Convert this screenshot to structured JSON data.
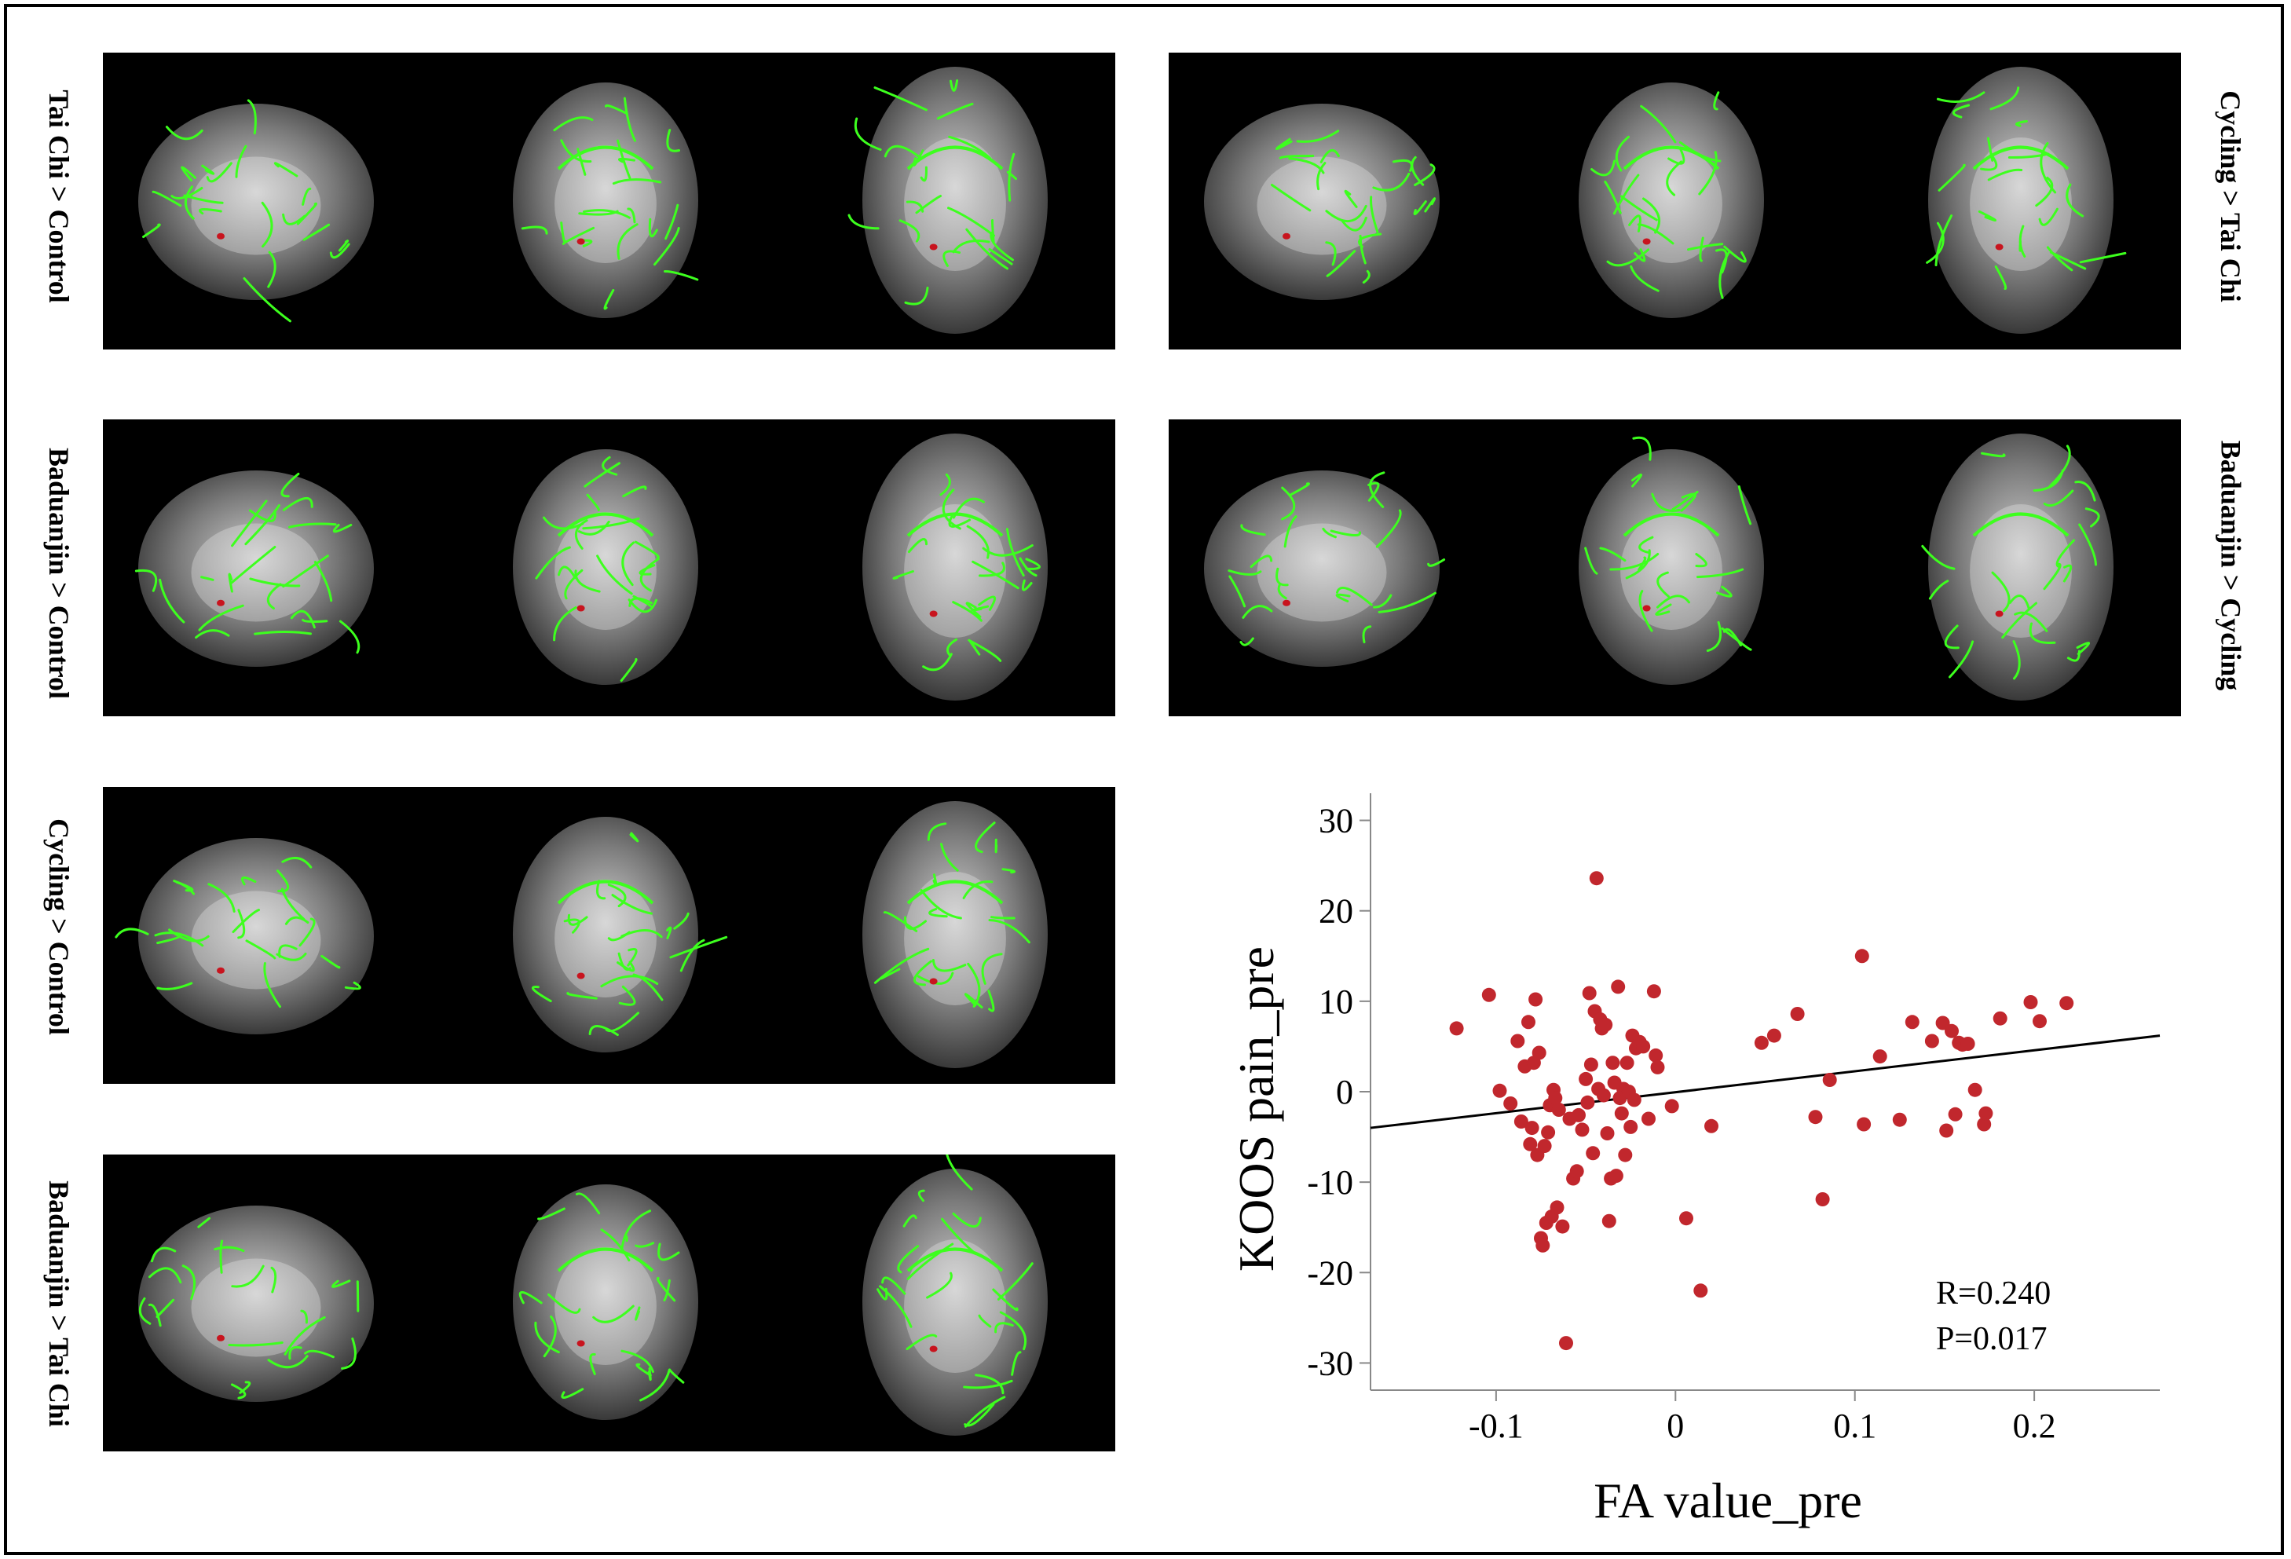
{
  "panels": [
    {
      "label": "Tai Chi > Control",
      "side": "left"
    },
    {
      "label": "Cycling > Tai Chi",
      "side": "right"
    },
    {
      "label": "Baduanjin > Control",
      "side": "left"
    },
    {
      "label": "Baduanjin > Cycling",
      "side": "right"
    },
    {
      "label": "Cycling > Control",
      "side": "left"
    },
    {
      "label": "Baduanjin > Tai Chi",
      "side": "left"
    }
  ],
  "colors": {
    "tract": "#3dff1e",
    "cluster": "#c8141e",
    "point": "#c1272d",
    "background": "#000000"
  },
  "chart_data": {
    "type": "scatter",
    "title": "",
    "xlabel": "FA value_pre",
    "ylabel": "KOOS pain_pre",
    "xlim": [
      -0.17,
      0.27
    ],
    "ylim": [
      -33,
      33
    ],
    "xticks": [
      -0.1,
      0,
      0.1,
      0.2
    ],
    "xtick_labels": [
      "-0.1",
      "0",
      "0.1",
      "0.2"
    ],
    "yticks": [
      -30,
      -20,
      -10,
      0,
      10,
      20,
      30
    ],
    "ytick_labels": [
      "-30",
      "-20",
      "-10",
      "0",
      "10",
      "20",
      "30"
    ],
    "stats": {
      "r_text": "R=0.240",
      "p_text": "P=0.017"
    },
    "fit_line": {
      "x": [
        -0.17,
        0.27
      ],
      "y": [
        -4.0,
        6.2
      ]
    },
    "points": [
      [
        -0.122,
        7.0
      ],
      [
        -0.104,
        10.7
      ],
      [
        -0.098,
        0.1
      ],
      [
        -0.092,
        -1.3
      ],
      [
        -0.088,
        5.6
      ],
      [
        -0.086,
        -3.3
      ],
      [
        -0.084,
        2.8
      ],
      [
        -0.082,
        7.7
      ],
      [
        -0.081,
        -5.8
      ],
      [
        -0.08,
        -4.0
      ],
      [
        -0.079,
        3.2
      ],
      [
        -0.078,
        10.2
      ],
      [
        -0.077,
        -7.0
      ],
      [
        -0.076,
        4.3
      ],
      [
        -0.075,
        -16.2
      ],
      [
        -0.074,
        -17.0
      ],
      [
        -0.073,
        -6.0
      ],
      [
        -0.072,
        -14.5
      ],
      [
        -0.071,
        -4.5
      ],
      [
        -0.07,
        -1.5
      ],
      [
        -0.069,
        -13.8
      ],
      [
        -0.068,
        0.2
      ],
      [
        -0.067,
        -0.7
      ],
      [
        -0.066,
        -12.8
      ],
      [
        -0.065,
        -2.0
      ],
      [
        -0.063,
        -14.9
      ],
      [
        -0.061,
        -27.8
      ],
      [
        -0.059,
        -3.0
      ],
      [
        -0.057,
        -9.6
      ],
      [
        -0.055,
        -8.8
      ],
      [
        -0.054,
        -2.6
      ],
      [
        -0.052,
        -4.2
      ],
      [
        -0.05,
        1.4
      ],
      [
        -0.049,
        -1.2
      ],
      [
        -0.048,
        10.9
      ],
      [
        -0.047,
        3.0
      ],
      [
        -0.046,
        -6.8
      ],
      [
        -0.045,
        8.9
      ],
      [
        -0.044,
        23.6
      ],
      [
        -0.043,
        0.3
      ],
      [
        -0.042,
        8.0
      ],
      [
        -0.041,
        7.0
      ],
      [
        -0.04,
        -0.4
      ],
      [
        -0.039,
        7.4
      ],
      [
        -0.038,
        -4.6
      ],
      [
        -0.037,
        -14.3
      ],
      [
        -0.036,
        -9.6
      ],
      [
        -0.035,
        3.2
      ],
      [
        -0.034,
        1.0
      ],
      [
        -0.033,
        -9.3
      ],
      [
        -0.032,
        11.6
      ],
      [
        -0.031,
        -0.7
      ],
      [
        -0.03,
        -2.4
      ],
      [
        -0.029,
        0.3
      ],
      [
        -0.028,
        -7.0
      ],
      [
        -0.027,
        3.2
      ],
      [
        -0.026,
        0.0
      ],
      [
        -0.025,
        -3.9
      ],
      [
        -0.024,
        6.2
      ],
      [
        -0.023,
        -0.9
      ],
      [
        -0.022,
        4.8
      ],
      [
        -0.02,
        5.5
      ],
      [
        -0.018,
        5.0
      ],
      [
        -0.015,
        -3.0
      ],
      [
        -0.012,
        11.1
      ],
      [
        -0.011,
        4.0
      ],
      [
        -0.01,
        2.7
      ],
      [
        -0.002,
        -1.6
      ],
      [
        0.006,
        -14.0
      ],
      [
        0.014,
        -22.0
      ],
      [
        0.02,
        -3.8
      ],
      [
        0.048,
        5.4
      ],
      [
        0.055,
        6.2
      ],
      [
        0.068,
        8.6
      ],
      [
        0.078,
        -2.8
      ],
      [
        0.082,
        -11.9
      ],
      [
        0.086,
        1.3
      ],
      [
        0.104,
        15.0
      ],
      [
        0.105,
        -3.6
      ],
      [
        0.114,
        3.9
      ],
      [
        0.125,
        -3.1
      ],
      [
        0.132,
        7.7
      ],
      [
        0.143,
        5.6
      ],
      [
        0.149,
        7.6
      ],
      [
        0.151,
        -4.3
      ],
      [
        0.154,
        6.7
      ],
      [
        0.156,
        -2.5
      ],
      [
        0.158,
        5.4
      ],
      [
        0.16,
        5.2
      ],
      [
        0.163,
        5.3
      ],
      [
        0.167,
        0.2
      ],
      [
        0.172,
        -3.6
      ],
      [
        0.173,
        -2.4
      ],
      [
        0.181,
        8.1
      ],
      [
        0.198,
        9.9
      ],
      [
        0.203,
        7.8
      ],
      [
        0.218,
        9.8
      ]
    ]
  }
}
